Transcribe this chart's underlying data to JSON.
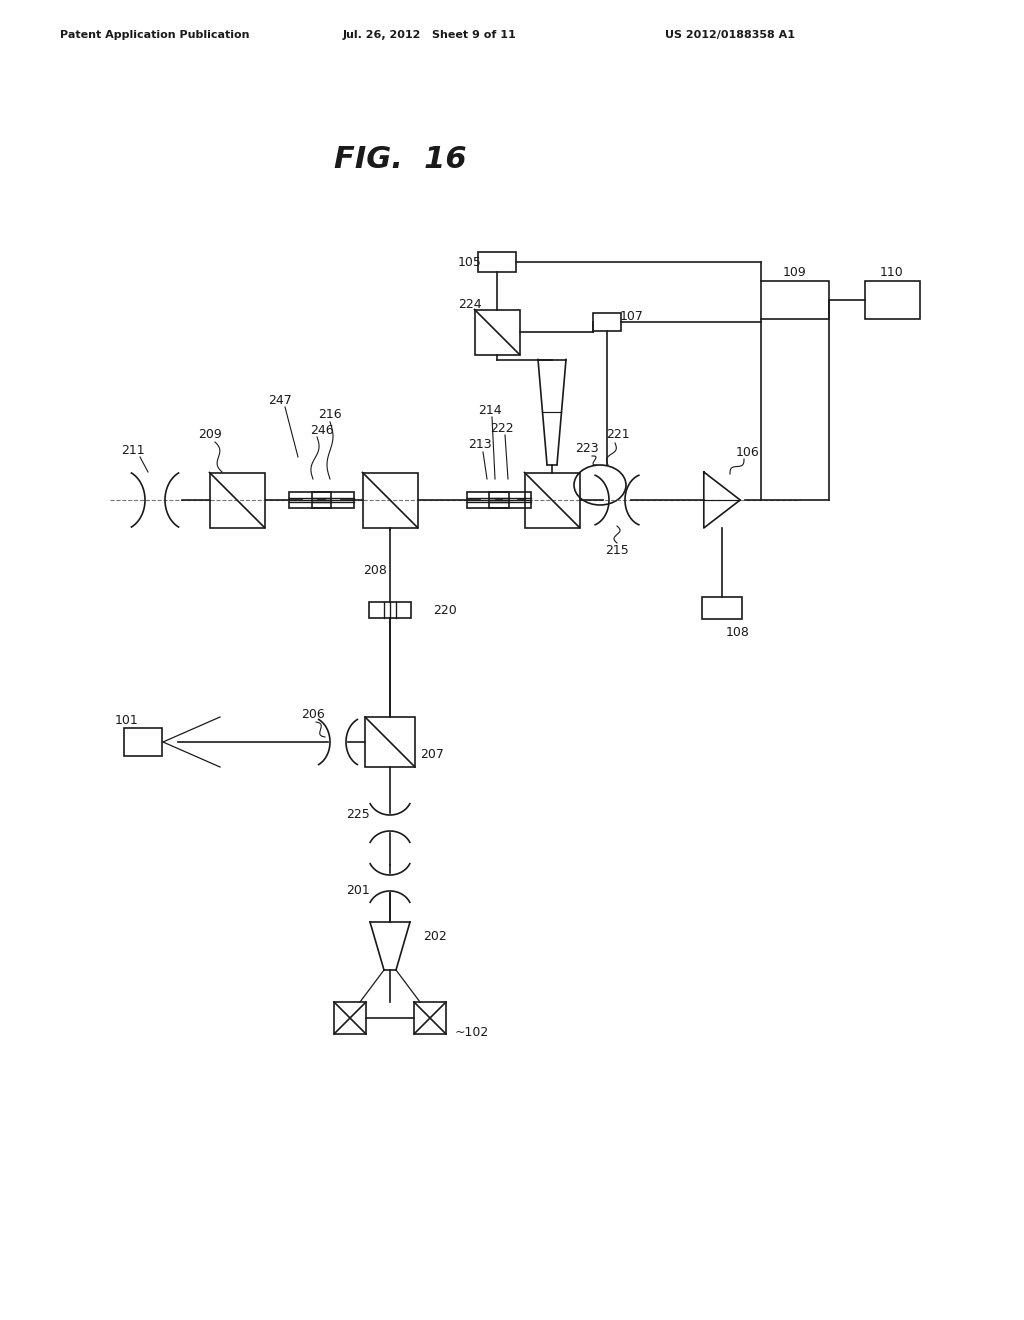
{
  "title": "FIG.  16",
  "header_left": "Patent Application Publication",
  "header_mid": "Jul. 26, 2012   Sheet 9 of 11",
  "header_right": "US 2012/0188358 A1",
  "bg_color": "#ffffff",
  "line_color": "#1a1a1a",
  "label_fontsize": 9,
  "title_fontsize": 22
}
